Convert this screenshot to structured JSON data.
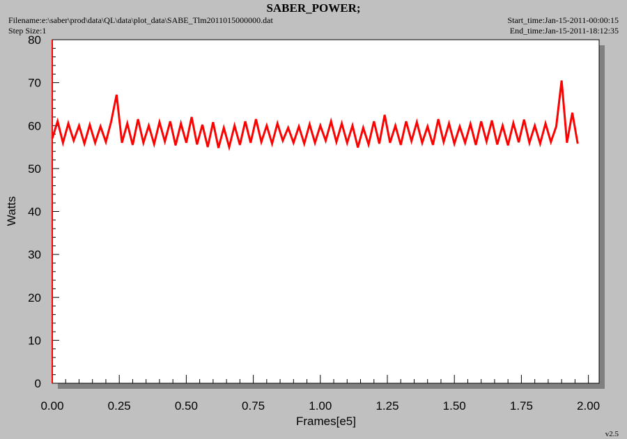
{
  "chart_data": {
    "type": "line",
    "title": "SABER_POWER;",
    "filename": "Filename:e:\\saber\\prod\\data\\QL\\data\\plot_data\\SABE_Tlm2011015000000.dat",
    "step_size": "Step Size:1",
    "start_time": "Start_time:Jan-15-2011-00:00:15",
    "end_time": "End_time:Jan-15-2011-18:12:35",
    "version": "v2.5",
    "x_label": "Frames[e5]",
    "y_label": "Watts",
    "color": "#ff0000",
    "xlim": [
      0,
      2.04
    ],
    "ylim": [
      0,
      80
    ],
    "xticks": [
      {
        "value": 0,
        "label": "0.00"
      },
      {
        "value": 0.25,
        "label": "0.25"
      },
      {
        "value": 0.5,
        "label": "0.50"
      },
      {
        "value": 0.75,
        "label": "0.75"
      },
      {
        "value": 1,
        "label": "1.00"
      },
      {
        "value": 1.25,
        "label": "1.25"
      },
      {
        "value": 1.5,
        "label": "1.50"
      },
      {
        "value": 1.75,
        "label": "1.75"
      },
      {
        "value": 2,
        "label": "2.00"
      }
    ],
    "yticks": [
      0,
      10,
      20,
      30,
      40,
      50,
      60,
      70,
      80
    ],
    "x": [
      0,
      0.02,
      0.04,
      0.06,
      0.08,
      0.1,
      0.12,
      0.14,
      0.16,
      0.18,
      0.2,
      0.22,
      0.24,
      0.26,
      0.28,
      0.3,
      0.32,
      0.34,
      0.36,
      0.38,
      0.4,
      0.42,
      0.44,
      0.46,
      0.48,
      0.5,
      0.52,
      0.54,
      0.56,
      0.58,
      0.6,
      0.62,
      0.64,
      0.66,
      0.68,
      0.7,
      0.72,
      0.74,
      0.76,
      0.78,
      0.8,
      0.82,
      0.84,
      0.86,
      0.88,
      0.9,
      0.92,
      0.94,
      0.96,
      0.98,
      1,
      1.02,
      1.04,
      1.06,
      1.08,
      1.1,
      1.12,
      1.14,
      1.16,
      1.18,
      1.2,
      1.22,
      1.24,
      1.26,
      1.28,
      1.3,
      1.32,
      1.34,
      1.36,
      1.38,
      1.4,
      1.42,
      1.44,
      1.46,
      1.48,
      1.5,
      1.52,
      1.54,
      1.56,
      1.58,
      1.6,
      1.62,
      1.64,
      1.66,
      1.68,
      1.7,
      1.72,
      1.74,
      1.76,
      1.78,
      1.8,
      1.82,
      1.84,
      1.86,
      1.88,
      1.9,
      1.92,
      1.94,
      1.96
    ],
    "values": [
      57,
      61,
      56,
      60.5,
      56.5,
      60,
      55.8,
      60.2,
      56,
      59.8,
      56.2,
      61,
      67.2,
      56,
      60.5,
      55.5,
      61.5,
      56,
      60,
      55.7,
      60.8,
      56.3,
      61,
      55.4,
      60.5,
      56,
      62,
      55.6,
      60.2,
      55,
      60.8,
      54.8,
      59.5,
      55,
      60,
      55.5,
      61,
      56,
      61.5,
      56.2,
      60,
      55.8,
      60.5,
      56.5,
      59.5,
      56,
      59.8,
      55.8,
      60.3,
      56,
      60,
      56.5,
      61,
      56.2,
      60.5,
      56,
      60,
      54.9,
      59.5,
      55.6,
      61,
      55.8,
      62.5,
      56,
      60,
      55.5,
      61,
      56.4,
      60.8,
      56,
      59.8,
      55.5,
      61.5,
      56.2,
      60.5,
      55.8,
      59.8,
      56,
      60.4,
      55.5,
      61,
      56.3,
      61.2,
      55.6,
      60,
      55.4,
      60.6,
      56.1,
      61.4,
      56,
      60,
      55.8,
      60.5,
      56.2,
      59.8,
      70.5,
      56,
      63,
      55.8
    ]
  }
}
